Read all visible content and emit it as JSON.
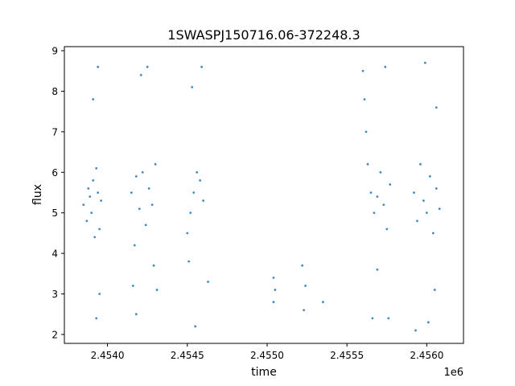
{
  "chart_data": {
    "type": "scatter",
    "title": "1SWASPJ150716.06-372248.3",
    "xlabel": "time",
    "ylabel": "flux",
    "x_offset_label": "1e6",
    "xlim": [
      2.45373,
      2.45623
    ],
    "ylim": [
      1.78,
      9.1
    ],
    "x_ticks": [
      2.454,
      2.4545,
      2.455,
      2.4555,
      2.456
    ],
    "x_tick_labels": [
      "2.4540",
      "2.4545",
      "2.4550",
      "2.4555",
      "2.4560"
    ],
    "y_ticks": [
      2,
      3,
      4,
      5,
      6,
      7,
      8,
      9
    ],
    "y_tick_labels": [
      "2",
      "3",
      "4",
      "5",
      "6",
      "7",
      "8",
      "9"
    ],
    "marker_color": "#1f77b4",
    "grid": false,
    "series": [
      {
        "values": [
          {
            "x": 2.45385,
            "y": 5.2
          },
          {
            "x": 2.45387,
            "y": 4.8
          },
          {
            "x": 2.45388,
            "y": 5.6
          },
          {
            "x": 2.45389,
            "y": 5.4
          },
          {
            "x": 2.4539,
            "y": 5.0
          },
          {
            "x": 2.45391,
            "y": 5.8
          },
          {
            "x": 2.45392,
            "y": 4.4
          },
          {
            "x": 2.45393,
            "y": 6.1
          },
          {
            "x": 2.45394,
            "y": 5.5
          },
          {
            "x": 2.45395,
            "y": 4.6
          },
          {
            "x": 2.45396,
            "y": 5.3
          },
          {
            "x": 2.45391,
            "y": 7.8
          },
          {
            "x": 2.45395,
            "y": 3.0
          },
          {
            "x": 2.45393,
            "y": 2.4
          },
          {
            "x": 2.45394,
            "y": 8.6
          },
          {
            "x": 2.45415,
            "y": 5.5
          },
          {
            "x": 2.45417,
            "y": 4.2
          },
          {
            "x": 2.45416,
            "y": 3.2
          },
          {
            "x": 2.45418,
            "y": 5.9
          },
          {
            "x": 2.4542,
            "y": 5.1
          },
          {
            "x": 2.45422,
            "y": 6.0
          },
          {
            "x": 2.45424,
            "y": 4.7
          },
          {
            "x": 2.45426,
            "y": 5.6
          },
          {
            "x": 2.45428,
            "y": 5.2
          },
          {
            "x": 2.4543,
            "y": 6.2
          },
          {
            "x": 2.45421,
            "y": 8.4
          },
          {
            "x": 2.45425,
            "y": 8.6
          },
          {
            "x": 2.45429,
            "y": 3.7
          },
          {
            "x": 2.45431,
            "y": 3.1
          },
          {
            "x": 2.45418,
            "y": 2.5
          },
          {
            "x": 2.4545,
            "y": 4.5
          },
          {
            "x": 2.45452,
            "y": 5.0
          },
          {
            "x": 2.45454,
            "y": 5.5
          },
          {
            "x": 2.45456,
            "y": 6.0
          },
          {
            "x": 2.45458,
            "y": 5.8
          },
          {
            "x": 2.4546,
            "y": 5.3
          },
          {
            "x": 2.45453,
            "y": 8.1
          },
          {
            "x": 2.45459,
            "y": 8.6
          },
          {
            "x": 2.45455,
            "y": 2.2
          },
          {
            "x": 2.45463,
            "y": 3.3
          },
          {
            "x": 2.45451,
            "y": 3.8
          },
          {
            "x": 2.45504,
            "y": 3.4
          },
          {
            "x": 2.45505,
            "y": 3.1
          },
          {
            "x": 2.45504,
            "y": 2.8
          },
          {
            "x": 2.45522,
            "y": 3.7
          },
          {
            "x": 2.45524,
            "y": 3.2
          },
          {
            "x": 2.45523,
            "y": 2.6
          },
          {
            "x": 2.45535,
            "y": 2.8
          },
          {
            "x": 2.4556,
            "y": 8.5
          },
          {
            "x": 2.45561,
            "y": 7.8
          },
          {
            "x": 2.45562,
            "y": 7.0
          },
          {
            "x": 2.45563,
            "y": 6.2
          },
          {
            "x": 2.45565,
            "y": 5.5
          },
          {
            "x": 2.45567,
            "y": 5.0
          },
          {
            "x": 2.45569,
            "y": 5.4
          },
          {
            "x": 2.45571,
            "y": 6.0
          },
          {
            "x": 2.45573,
            "y": 5.2
          },
          {
            "x": 2.45575,
            "y": 4.6
          },
          {
            "x": 2.45577,
            "y": 5.7
          },
          {
            "x": 2.45574,
            "y": 8.6
          },
          {
            "x": 2.45566,
            "y": 2.4
          },
          {
            "x": 2.45576,
            "y": 2.4
          },
          {
            "x": 2.45569,
            "y": 3.6
          },
          {
            "x": 2.45592,
            "y": 5.5
          },
          {
            "x": 2.45594,
            "y": 4.8
          },
          {
            "x": 2.45596,
            "y": 6.2
          },
          {
            "x": 2.45598,
            "y": 5.3
          },
          {
            "x": 2.456,
            "y": 5.0
          },
          {
            "x": 2.45602,
            "y": 5.9
          },
          {
            "x": 2.45604,
            "y": 4.5
          },
          {
            "x": 2.45606,
            "y": 5.6
          },
          {
            "x": 2.45608,
            "y": 5.1
          },
          {
            "x": 2.45599,
            "y": 8.7
          },
          {
            "x": 2.45606,
            "y": 7.6
          },
          {
            "x": 2.45593,
            "y": 2.1
          },
          {
            "x": 2.45601,
            "y": 2.3
          },
          {
            "x": 2.45605,
            "y": 3.1
          }
        ]
      }
    ]
  }
}
